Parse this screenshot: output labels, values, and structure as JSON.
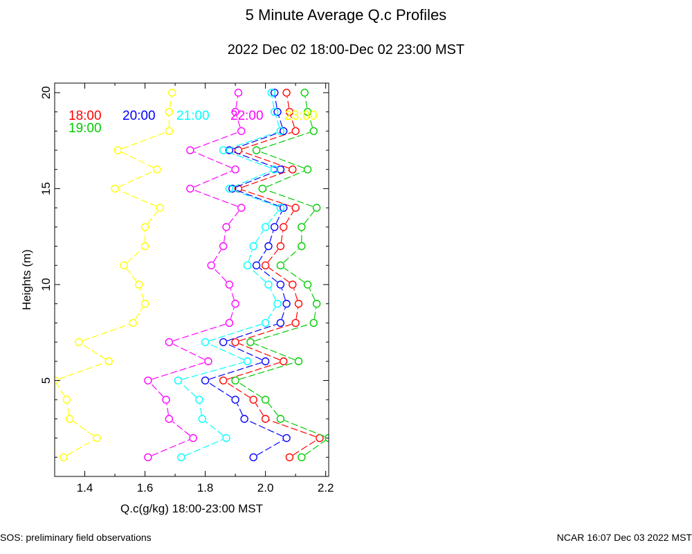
{
  "footer": {
    "left": "SOS: preliminary field observations",
    "right": "NCAR 16:07 Dec 03 2022 MST"
  },
  "chart_data": {
    "type": "scatter",
    "title": "5 Minute Average Q.c Profiles",
    "subtitle": "2022 Dec 02 18:00-Dec 02 23:00 MST",
    "xlabel": "Q.c(g/kg) 18:00-23:00 MST",
    "ylabel": "Heights (m)",
    "xlim": [
      1.3,
      2.21
    ],
    "ylim": [
      0,
      20.5
    ],
    "xticks": [
      1.4,
      1.6,
      1.8,
      2.0,
      2.2
    ],
    "xtick_labels": [
      "1.4",
      "1.6",
      "1.8",
      "2.0",
      "2.2"
    ],
    "yticks": [
      5,
      10,
      15,
      20
    ],
    "ytick_labels": [
      "5",
      "10",
      "15",
      "20"
    ],
    "grid": false,
    "legend_position": "top, inside plot",
    "marker": "open circle",
    "line_style": "dashed between consecutive heights",
    "heights": [
      1,
      2,
      3,
      4,
      5,
      6,
      7,
      8,
      9,
      10,
      11,
      12,
      13,
      14,
      15,
      16,
      17,
      18,
      19,
      20
    ],
    "series": [
      {
        "name": "18:00",
        "color": "#ff0000",
        "x": [
          2.08,
          2.18,
          2.0,
          1.96,
          1.86,
          2.06,
          1.9,
          2.1,
          2.11,
          2.09,
          2.0,
          2.05,
          2.06,
          2.1,
          1.91,
          2.09,
          1.91,
          2.1,
          2.08,
          2.07
        ]
      },
      {
        "name": "19:00",
        "color": "#00cc00",
        "x": [
          2.12,
          2.21,
          2.05,
          2.0,
          1.9,
          2.11,
          1.95,
          2.16,
          2.17,
          2.14,
          2.05,
          2.12,
          2.12,
          2.17,
          1.99,
          2.14,
          1.97,
          2.16,
          2.14,
          2.13
        ]
      },
      {
        "name": "20:00",
        "color": "#0000ff",
        "x": [
          1.96,
          2.07,
          1.93,
          1.9,
          1.8,
          2.0,
          1.86,
          2.05,
          2.07,
          2.05,
          1.97,
          2.01,
          2.03,
          2.06,
          1.89,
          2.05,
          1.88,
          2.06,
          2.04,
          2.03
        ]
      },
      {
        "name": "21:00",
        "color": "#00ffff",
        "x": [
          1.72,
          1.87,
          1.79,
          1.78,
          1.71,
          1.94,
          1.8,
          2.0,
          2.04,
          2.01,
          1.94,
          1.96,
          2.0,
          2.05,
          1.88,
          2.03,
          1.86,
          2.05,
          2.03,
          2.02
        ]
      },
      {
        "name": "22:00",
        "color": "#ff00ff",
        "x": [
          1.61,
          1.76,
          1.68,
          1.67,
          1.61,
          1.81,
          1.68,
          1.88,
          1.9,
          1.88,
          1.82,
          1.86,
          1.87,
          1.92,
          1.75,
          1.9,
          1.75,
          1.92,
          1.9,
          1.91
        ]
      },
      {
        "name": "23:00",
        "color": "#ffff00",
        "x": [
          1.33,
          1.44,
          1.35,
          1.34,
          1.3,
          1.48,
          1.38,
          1.56,
          1.6,
          1.58,
          1.53,
          1.6,
          1.6,
          1.65,
          1.5,
          1.64,
          1.51,
          1.68,
          1.68,
          1.69
        ]
      }
    ]
  }
}
